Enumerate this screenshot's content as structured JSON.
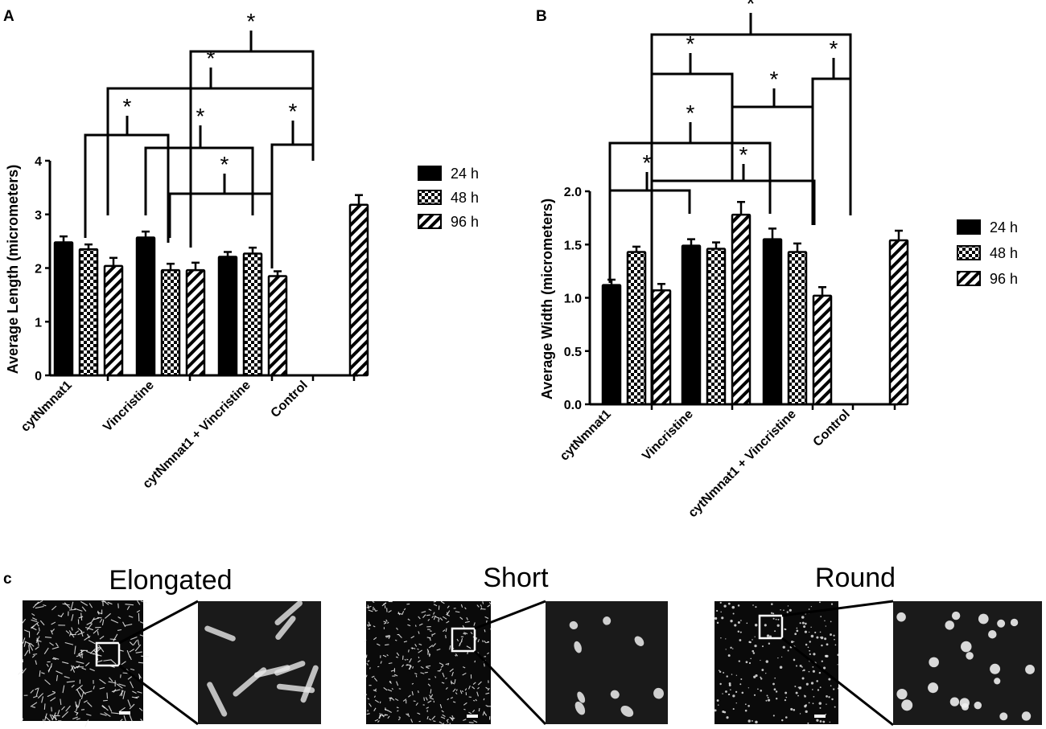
{
  "panels": {
    "a": "A",
    "b": "B",
    "c": "c"
  },
  "legend": [
    "24 h",
    "48 h",
    "96 h"
  ],
  "significance_marker": "*",
  "colors": {
    "bar_fill": "#000000",
    "pattern_fill": "#ffffff",
    "micrograph_background": "#0a0a0a",
    "mitochondria": "#f2f2f2"
  },
  "chart_data": [
    {
      "type": "bar",
      "panel": "A",
      "categories": [
        "cytNmnat1",
        "Vincristine",
        "cytNmnat1 + Vincristine",
        "Control"
      ],
      "series": [
        {
          "name": "24 h",
          "fill": "solid",
          "values": [
            2.48,
            2.57,
            2.21,
            null
          ],
          "errors": [
            0.11,
            0.11,
            0.09,
            null
          ]
        },
        {
          "name": "48 h",
          "fill": "checker",
          "values": [
            2.35,
            1.96,
            2.27,
            null
          ],
          "errors": [
            0.09,
            0.12,
            0.11,
            null
          ]
        },
        {
          "name": "96 h",
          "fill": "hatch",
          "values": [
            2.04,
            1.96,
            1.85,
            3.18
          ],
          "errors": [
            0.15,
            0.14,
            0.09,
            0.18
          ]
        }
      ],
      "ylabel": "Average Length (micrometers)",
      "ylim": [
        0,
        4
      ],
      "yticks": [
        "0",
        "1",
        "2",
        "3",
        "4"
      ],
      "grid": false,
      "legend_position": "right",
      "significance_brackets": 7
    },
    {
      "type": "bar",
      "panel": "B",
      "categories": [
        "cytNmnat1",
        "Vincristine",
        "cytNmnat1 + Vincristine",
        "Control"
      ],
      "series": [
        {
          "name": "24 h",
          "fill": "solid",
          "values": [
            1.12,
            1.49,
            1.55,
            null
          ],
          "errors": [
            0.05,
            0.06,
            0.1,
            null
          ]
        },
        {
          "name": "48 h",
          "fill": "checker",
          "values": [
            1.43,
            1.46,
            1.43,
            null
          ],
          "errors": [
            0.05,
            0.06,
            0.08,
            null
          ]
        },
        {
          "name": "96 h",
          "fill": "hatch",
          "values": [
            1.07,
            1.78,
            1.02,
            1.54
          ],
          "errors": [
            0.06,
            0.12,
            0.08,
            0.09
          ]
        }
      ],
      "ylabel": "Average Width (micrometers)",
      "ylim": [
        0,
        2.0
      ],
      "yticks": [
        "0.0",
        "0.5",
        "1.0",
        "1.5",
        "2.0"
      ],
      "grid": false,
      "legend_position": "right",
      "significance_brackets": 7
    }
  ],
  "micrographs": {
    "titles": [
      "Elongated",
      "Short",
      "Round"
    ]
  }
}
